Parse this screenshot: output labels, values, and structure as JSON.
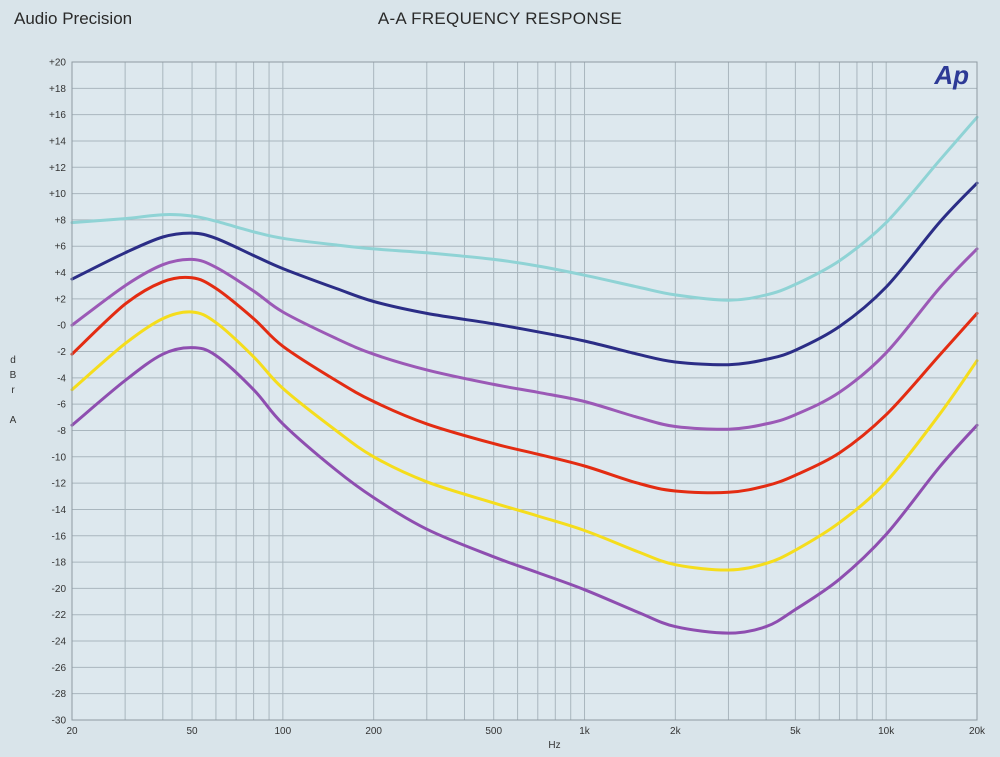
{
  "header": {
    "brand": "Audio Precision",
    "title": "A-A FREQUENCY RESPONSE"
  },
  "chart_data": {
    "type": "line",
    "title": "A-A FREQUENCY RESPONSE",
    "xlabel": "Hz",
    "ylabel": [
      "d",
      "B",
      "r",
      "A"
    ],
    "xscale": "log",
    "xlim": [
      20,
      20000
    ],
    "ylim": [
      -30,
      20
    ],
    "grid": true,
    "logo": "Ap",
    "background": "#d9e4ea",
    "plot_background": "#dde8ee",
    "x_ticks": [
      {
        "value": 20,
        "label": "20"
      },
      {
        "value": 50,
        "label": "50"
      },
      {
        "value": 100,
        "label": "100"
      },
      {
        "value": 200,
        "label": "200"
      },
      {
        "value": 500,
        "label": "500"
      },
      {
        "value": 1000,
        "label": "1k"
      },
      {
        "value": 2000,
        "label": "2k"
      },
      {
        "value": 5000,
        "label": "5k"
      },
      {
        "value": 10000,
        "label": "10k"
      },
      {
        "value": 20000,
        "label": "20k"
      }
    ],
    "y_ticks": [
      {
        "value": 20,
        "label": "+20"
      },
      {
        "value": 18,
        "label": "+18"
      },
      {
        "value": 16,
        "label": "+16"
      },
      {
        "value": 14,
        "label": "+14"
      },
      {
        "value": 12,
        "label": "+12"
      },
      {
        "value": 10,
        "label": "+10"
      },
      {
        "value": 8,
        "label": "+8"
      },
      {
        "value": 6,
        "label": "+6"
      },
      {
        "value": 4,
        "label": "+4"
      },
      {
        "value": 2,
        "label": "+2"
      },
      {
        "value": 0,
        "label": "-0"
      },
      {
        "value": -2,
        "label": "-2"
      },
      {
        "value": -4,
        "label": "-4"
      },
      {
        "value": -6,
        "label": "-6"
      },
      {
        "value": -8,
        "label": "-8"
      },
      {
        "value": -10,
        "label": "-10"
      },
      {
        "value": -12,
        "label": "-12"
      },
      {
        "value": -14,
        "label": "-14"
      },
      {
        "value": -16,
        "label": "-16"
      },
      {
        "value": -18,
        "label": "-18"
      },
      {
        "value": -20,
        "label": "-20"
      },
      {
        "value": -22,
        "label": "-22"
      },
      {
        "value": -24,
        "label": "-24"
      },
      {
        "value": -26,
        "label": "-26"
      },
      {
        "value": -28,
        "label": "-28"
      },
      {
        "value": -30,
        "label": "-30"
      }
    ],
    "x": [
      20,
      30,
      40,
      50,
      60,
      80,
      100,
      150,
      200,
      300,
      500,
      700,
      1000,
      1500,
      2000,
      3000,
      4000,
      5000,
      7000,
      10000,
      15000,
      20000
    ],
    "series": [
      {
        "name": "trace-1",
        "color": "#8fd3d5",
        "width": 3,
        "values": [
          7.8,
          8.1,
          8.4,
          8.3,
          7.9,
          7.1,
          6.6,
          6.1,
          5.8,
          5.5,
          5.0,
          4.5,
          3.8,
          2.9,
          2.3,
          1.9,
          2.3,
          3.1,
          4.9,
          7.8,
          12.5,
          15.8
        ]
      },
      {
        "name": "trace-2",
        "color": "#2b2d86",
        "width": 3,
        "values": [
          3.5,
          5.5,
          6.7,
          7.0,
          6.6,
          5.3,
          4.3,
          2.8,
          1.8,
          0.9,
          0.1,
          -0.5,
          -1.2,
          -2.2,
          -2.8,
          -3.0,
          -2.6,
          -1.9,
          -0.1,
          2.9,
          7.8,
          10.8
        ]
      },
      {
        "name": "trace-3",
        "color": "#9b59b6",
        "width": 3,
        "values": [
          0.0,
          3.0,
          4.6,
          5.0,
          4.4,
          2.6,
          1.0,
          -1.0,
          -2.2,
          -3.4,
          -4.5,
          -5.1,
          -5.8,
          -7.0,
          -7.7,
          -7.9,
          -7.5,
          -6.8,
          -5.1,
          -2.1,
          2.8,
          5.8
        ]
      },
      {
        "name": "trace-4",
        "color": "#e32c12",
        "width": 3,
        "values": [
          -2.2,
          1.6,
          3.3,
          3.6,
          2.8,
          0.5,
          -1.6,
          -4.2,
          -5.8,
          -7.5,
          -9.0,
          -9.8,
          -10.7,
          -12.0,
          -12.6,
          -12.7,
          -12.2,
          -11.4,
          -9.7,
          -6.8,
          -2.3,
          0.9
        ]
      },
      {
        "name": "trace-5",
        "color": "#f5dd1c",
        "width": 3,
        "values": [
          -4.9,
          -1.4,
          0.5,
          1.0,
          0.2,
          -2.4,
          -4.8,
          -8.0,
          -10.0,
          -11.9,
          -13.5,
          -14.5,
          -15.6,
          -17.2,
          -18.2,
          -18.6,
          -18.1,
          -17.1,
          -15.0,
          -11.9,
          -6.8,
          -2.7
        ]
      },
      {
        "name": "trace-6",
        "color": "#8e4eb0",
        "width": 3,
        "values": [
          -7.6,
          -4.2,
          -2.2,
          -1.7,
          -2.3,
          -4.9,
          -7.5,
          -11.0,
          -13.1,
          -15.5,
          -17.6,
          -18.8,
          -20.1,
          -21.8,
          -22.9,
          -23.4,
          -22.9,
          -21.6,
          -19.3,
          -15.9,
          -10.8,
          -7.6
        ]
      }
    ]
  }
}
